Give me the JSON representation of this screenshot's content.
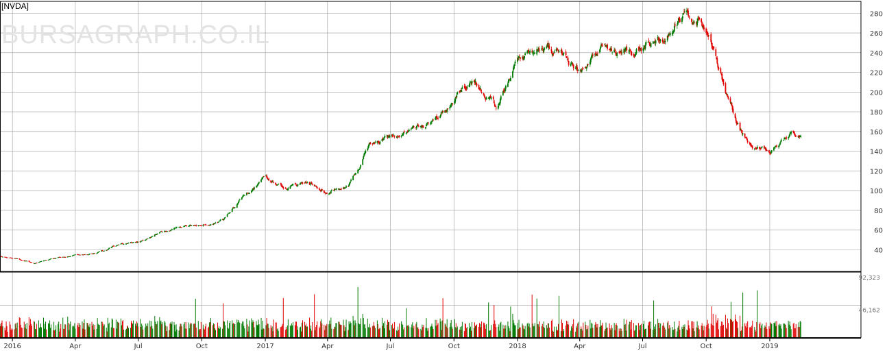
{
  "ticker": "[NVDA]",
  "watermark": "BURSAGRAPH.CO.IL",
  "colors": {
    "up": "#007a00",
    "down": "#e00000",
    "grid": "#9a9a9a",
    "axis": "#000000",
    "text": "#333333"
  },
  "chart_data": [
    {
      "type": "candlestick",
      "title": "",
      "ylim": [
        18,
        292
      ],
      "ytick_labels": [
        "40",
        "60",
        "80",
        "100",
        "120",
        "140",
        "160",
        "180",
        "200",
        "220",
        "240",
        "260",
        "280"
      ],
      "x": [
        "2015-12-14",
        "2016-01-01",
        "2016-02-01",
        "2016-03-01",
        "2016-04-01",
        "2016-05-01",
        "2016-06-01",
        "2016-07-01",
        "2016-08-01",
        "2016-09-01",
        "2016-10-01",
        "2016-11-01",
        "2016-12-01",
        "2017-01-01",
        "2017-02-01",
        "2017-03-01",
        "2017-04-01",
        "2017-05-01",
        "2017-06-01",
        "2017-07-01",
        "2017-08-01",
        "2017-09-01",
        "2017-10-01",
        "2017-11-01",
        "2017-12-01",
        "2018-01-01",
        "2018-02-01",
        "2018-03-01",
        "2018-04-01",
        "2018-05-01",
        "2018-06-01",
        "2018-07-01",
        "2018-08-01",
        "2018-09-01",
        "2018-10-01",
        "2018-10-20",
        "2018-11-01",
        "2018-12-01",
        "2019-01-01",
        "2019-02-01",
        "2019-02-16"
      ],
      "close": [
        33,
        32,
        27,
        31,
        35,
        36,
        45,
        47,
        57,
        62,
        66,
        70,
        95,
        112,
        102,
        108,
        100,
        104,
        145,
        155,
        162,
        170,
        195,
        210,
        185,
        230,
        245,
        240,
        220,
        250,
        240,
        245,
        255,
        280,
        265,
        225,
        195,
        145,
        140,
        158,
        157
      ]
    },
    {
      "type": "bar",
      "ylabel": "",
      "ytick_labels": [
        "46,162",
        "92,323"
      ],
      "ylim": [
        0,
        92323
      ]
    }
  ],
  "x_axis": {
    "labels": [
      "2016",
      "Apr",
      "Jul",
      "Oct",
      "2017",
      "Apr",
      "Jul",
      "Oct",
      "2018",
      "Apr",
      "Jul",
      "Oct",
      "2019"
    ]
  }
}
